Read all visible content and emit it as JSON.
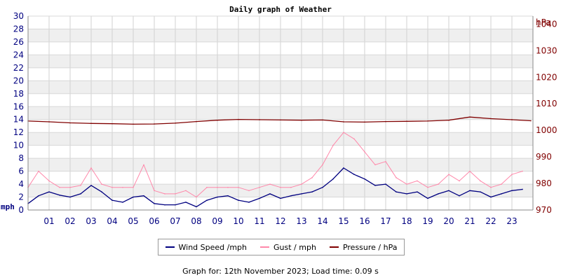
{
  "chart_data": {
    "type": "line",
    "title": "Daily graph of Weather",
    "left_axis": {
      "unit": "mph",
      "range": [
        0,
        30
      ],
      "ticks": [
        0,
        2,
        4,
        6,
        8,
        10,
        12,
        14,
        16,
        18,
        20,
        22,
        24,
        26,
        28,
        30
      ],
      "tick_labels": [
        "0",
        "2",
        "4",
        "6",
        "8",
        "10",
        "12",
        "14",
        "16",
        "18",
        "20",
        "22",
        "24",
        "26",
        "28",
        "30"
      ]
    },
    "right_axis": {
      "unit": "hPa",
      "range": [
        970,
        1043
      ],
      "ticks": [
        970,
        980,
        990,
        1000,
        1010,
        1020,
        1030,
        1040
      ],
      "tick_labels": [
        "970",
        "980",
        "990",
        "1000",
        "1010",
        "1020",
        "1030",
        "1040"
      ]
    },
    "x_axis": {
      "unit": "hour",
      "range": [
        0,
        24
      ],
      "tick_labels": [
        "01",
        "02",
        "03",
        "04",
        "05",
        "06",
        "07",
        "08",
        "09",
        "10",
        "11",
        "12",
        "13",
        "14",
        "15",
        "16",
        "17",
        "18",
        "19",
        "20",
        "21",
        "22",
        "23"
      ]
    },
    "grid": true,
    "legend_position": "bottom",
    "series": [
      {
        "name": "Wind Speed /mph",
        "axis": "left",
        "color": "#000080",
        "x": [
          0,
          0.5,
          1,
          1.5,
          2,
          2.5,
          3,
          3.5,
          4,
          4.5,
          5,
          5.5,
          6,
          6.5,
          7,
          7.5,
          8,
          8.5,
          9,
          9.5,
          10,
          10.5,
          11,
          11.5,
          12,
          12.5,
          13,
          13.5,
          14,
          14.5,
          15,
          15.5,
          16,
          16.5,
          17,
          17.5,
          18,
          18.5,
          19,
          19.5,
          20,
          20.5,
          21,
          21.5,
          22,
          22.5,
          23,
          23.5
        ],
        "values": [
          1.0,
          2.2,
          2.8,
          2.3,
          2.0,
          2.5,
          3.8,
          2.8,
          1.5,
          1.2,
          2.0,
          2.2,
          1.0,
          0.8,
          0.8,
          1.2,
          0.5,
          1.5,
          2.0,
          2.2,
          1.5,
          1.2,
          1.8,
          2.5,
          1.8,
          2.2,
          2.5,
          2.8,
          3.5,
          4.8,
          6.5,
          5.5,
          4.8,
          3.8,
          4.0,
          2.8,
          2.5,
          2.8,
          1.8,
          2.5,
          3.0,
          2.2,
          3.0,
          2.8,
          2.0,
          2.5,
          3.0,
          3.2
        ]
      },
      {
        "name": "Gust / mph",
        "axis": "left",
        "color": "#ff88aa",
        "x": [
          0,
          0.5,
          1,
          1.5,
          2,
          2.5,
          3,
          3.5,
          4,
          4.5,
          5,
          5.5,
          6,
          6.5,
          7,
          7.5,
          8,
          8.5,
          9,
          9.5,
          10,
          10.5,
          11,
          11.5,
          12,
          12.5,
          13,
          13.5,
          14,
          14.5,
          15,
          15.5,
          16,
          16.5,
          17,
          17.5,
          18,
          18.5,
          19,
          19.5,
          20,
          20.5,
          21,
          21.5,
          22,
          22.5,
          23,
          23.5
        ],
        "values": [
          3.5,
          6.0,
          4.5,
          3.5,
          3.5,
          3.8,
          6.5,
          4.0,
          3.5,
          3.5,
          3.5,
          7.0,
          3.0,
          2.5,
          2.5,
          3.0,
          2.0,
          3.5,
          3.5,
          3.5,
          3.5,
          3.0,
          3.5,
          4.0,
          3.5,
          3.5,
          4.0,
          5.0,
          7.0,
          10.0,
          12.0,
          11.0,
          9.0,
          7.0,
          7.5,
          5.0,
          4.0,
          4.5,
          3.5,
          4.0,
          5.5,
          4.5,
          6.0,
          4.5,
          3.5,
          4.0,
          5.5,
          6.0
        ]
      },
      {
        "name": "Pressure / hPa",
        "axis": "right",
        "color": "#800000",
        "x": [
          0,
          1,
          2,
          3,
          4,
          5,
          6,
          7,
          8,
          9,
          10,
          11,
          12,
          13,
          14,
          15,
          16,
          17,
          18,
          19,
          20,
          21,
          22,
          23,
          23.9
        ],
        "values": [
          1003.5,
          1003.2,
          1002.8,
          1002.6,
          1002.5,
          1002.3,
          1002.4,
          1002.7,
          1003.3,
          1003.8,
          1004.1,
          1004.0,
          1003.9,
          1003.8,
          1003.9,
          1003.2,
          1003.1,
          1003.3,
          1003.4,
          1003.5,
          1003.8,
          1005.0,
          1004.4,
          1004.0,
          1003.6
        ]
      }
    ]
  },
  "legend": {
    "wind": "Wind Speed /mph",
    "gust": "Gust / mph",
    "pressure": "Pressure / hPa"
  },
  "footer": "Graph for: 12th November 2023; Load time: 0.09 s"
}
